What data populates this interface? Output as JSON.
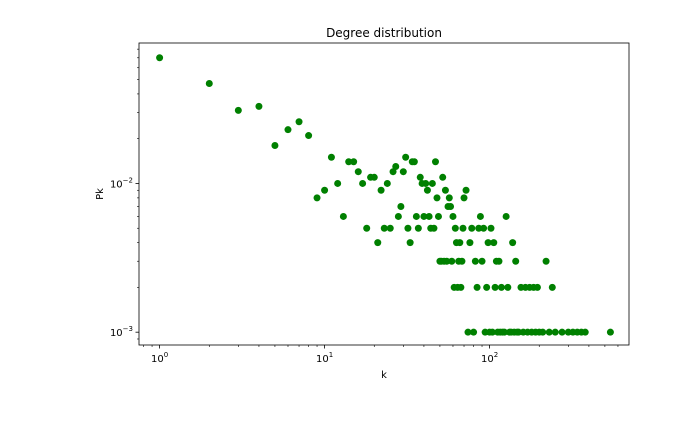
{
  "chart_data": {
    "type": "scatter",
    "title": "Degree distribution",
    "xlabel": "k",
    "ylabel": "Pk",
    "xscale": "log",
    "yscale": "log",
    "xlim": [
      0.75,
      700
    ],
    "ylim": [
      0.00082,
      0.088
    ],
    "grid": false,
    "marker_color": "#008000",
    "x_major_ticks": [
      {
        "value": 1,
        "base": "10",
        "exp": "0"
      },
      {
        "value": 10,
        "base": "10",
        "exp": "1"
      },
      {
        "value": 100,
        "base": "10",
        "exp": "2"
      }
    ],
    "y_major_ticks": [
      {
        "value": 0.001,
        "base": "10",
        "exp": "−3"
      },
      {
        "value": 0.01,
        "base": "10",
        "exp": "−2"
      }
    ],
    "x": [
      1,
      2,
      3,
      4,
      5,
      6,
      7,
      8,
      9,
      10,
      11,
      12,
      13,
      14,
      15,
      16,
      17,
      18,
      19,
      20,
      21,
      22,
      23,
      24,
      25,
      26,
      27,
      28,
      29,
      30,
      31,
      32,
      33,
      34,
      35,
      36,
      37,
      38,
      39,
      40,
      41,
      42,
      43,
      44,
      45,
      46,
      47,
      48,
      49,
      50,
      51,
      52,
      53,
      54,
      55,
      56,
      57,
      58,
      59,
      60,
      61,
      62,
      63,
      64,
      65,
      66,
      67,
      68,
      69,
      70,
      72,
      74,
      76,
      78,
      80,
      82,
      84,
      86,
      88,
      90,
      92,
      94,
      96,
      98,
      100,
      102,
      104,
      106,
      108,
      110,
      112,
      114,
      116,
      118,
      120,
      123,
      126,
      129,
      132,
      135,
      138,
      141,
      144,
      147,
      150,
      155,
      160,
      165,
      170,
      175,
      180,
      185,
      190,
      195,
      200,
      210,
      220,
      230,
      240,
      250,
      275,
      300,
      320,
      340,
      360,
      380,
      540
    ],
    "y": [
      0.07,
      0.047,
      0.031,
      0.033,
      0.018,
      0.023,
      0.026,
      0.021,
      0.008,
      0.009,
      0.015,
      0.01,
      0.006,
      0.014,
      0.014,
      0.012,
      0.01,
      0.005,
      0.011,
      0.011,
      0.004,
      0.009,
      0.005,
      0.01,
      0.005,
      0.012,
      0.013,
      0.006,
      0.007,
      0.012,
      0.015,
      0.005,
      0.004,
      0.014,
      0.014,
      0.006,
      0.005,
      0.011,
      0.01,
      0.006,
      0.01,
      0.009,
      0.006,
      0.005,
      0.01,
      0.005,
      0.014,
      0.008,
      0.006,
      0.003,
      0.003,
      0.011,
      0.003,
      0.009,
      0.003,
      0.007,
      0.008,
      0.007,
      0.003,
      0.006,
      0.002,
      0.005,
      0.004,
      0.002,
      0.003,
      0.004,
      0.002,
      0.003,
      0.005,
      0.008,
      0.009,
      0.001,
      0.004,
      0.005,
      0.001,
      0.003,
      0.002,
      0.005,
      0.006,
      0.003,
      0.005,
      0.001,
      0.002,
      0.004,
      0.001,
      0.005,
      0.001,
      0.004,
      0.002,
      0.003,
      0.001,
      0.003,
      0.001,
      0.002,
      0.001,
      0.001,
      0.006,
      0.002,
      0.001,
      0.001,
      0.004,
      0.001,
      0.003,
      0.001,
      0.001,
      0.002,
      0.001,
      0.002,
      0.001,
      0.002,
      0.001,
      0.002,
      0.001,
      0.002,
      0.001,
      0.001,
      0.003,
      0.001,
      0.002,
      0.001,
      0.001,
      0.001,
      0.001,
      0.001,
      0.001,
      0.001,
      0.001
    ]
  }
}
